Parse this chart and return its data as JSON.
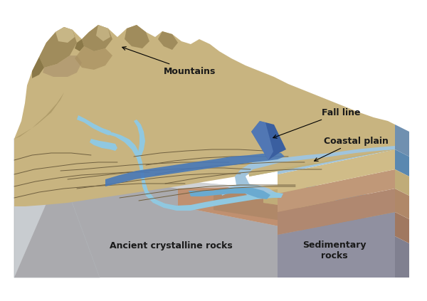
{
  "background_color": "#ffffff",
  "labels": {
    "mountains": "Mountains",
    "fall_line": "Fall line",
    "coastal_plain": "Coastal plain",
    "ancient_rocks": "Ancient crystalline rocks",
    "sedimentary": "Sedimentary\nrocks"
  },
  "colors": {
    "terrain_main": "#c8b480",
    "terrain_dark": "#a08c5c",
    "terrain_shadow": "#8a7848",
    "mountain_face": "#b09868",
    "river_light": "#90c8e0",
    "river_mid": "#6aaad0",
    "river_dark": "#4878b8",
    "fall_band": "#3a5fa0",
    "fall_band_light": "#6890c8",
    "side_wall": "#c8ccd0",
    "side_wall_dark": "#b0b4b8",
    "front_face_base": "#d0d2d4",
    "layer_ocean_top": "#a0c4dc",
    "layer_ocean_side": "#7090b0",
    "layer_sand_top": "#d0bc88",
    "layer_sand_side": "#c0ac78",
    "layer_rust_top": "#c09878",
    "layer_rust_side": "#b08868",
    "layer_brown_top": "#b08870",
    "layer_brown_side": "#a07860",
    "layer_gray_top": "#9090a0",
    "layer_gray_side": "#808090",
    "contour_line": "#706040",
    "text_color": "#1a1a1a",
    "annotation_color": "#1a1a1a"
  },
  "figsize": [
    6.0,
    4.23
  ],
  "dpi": 100
}
